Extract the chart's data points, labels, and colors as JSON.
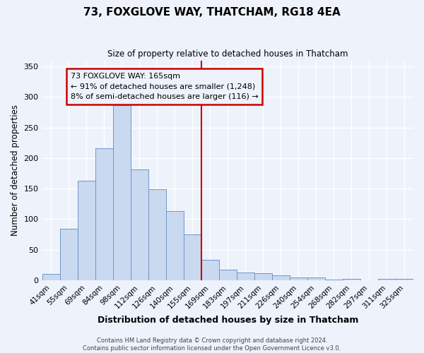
{
  "title": "73, FOXGLOVE WAY, THATCHAM, RG18 4EA",
  "subtitle": "Size of property relative to detached houses in Thatcham",
  "xlabel": "Distribution of detached houses by size in Thatcham",
  "ylabel": "Number of detached properties",
  "bar_labels": [
    "41sqm",
    "55sqm",
    "69sqm",
    "84sqm",
    "98sqm",
    "112sqm",
    "126sqm",
    "140sqm",
    "155sqm",
    "169sqm",
    "183sqm",
    "197sqm",
    "211sqm",
    "226sqm",
    "240sqm",
    "254sqm",
    "268sqm",
    "282sqm",
    "297sqm",
    "311sqm",
    "325sqm"
  ],
  "bar_heights": [
    10,
    84,
    163,
    216,
    287,
    181,
    149,
    113,
    75,
    34,
    17,
    13,
    11,
    8,
    4,
    4,
    1,
    2,
    0,
    2,
    2
  ],
  "bar_color": "#c9d9f0",
  "bar_edge_color": "#7096c8",
  "vline_x": 9.0,
  "vline_color": "#cc0000",
  "annotation_title": "73 FOXGLOVE WAY: 165sqm",
  "annotation_line1": "← 91% of detached houses are smaller (1,248)",
  "annotation_line2": "8% of semi-detached houses are larger (116) →",
  "annotation_box_color": "#cc0000",
  "ylim": [
    0,
    360
  ],
  "yticks": [
    0,
    50,
    100,
    150,
    200,
    250,
    300,
    350
  ],
  "footer1": "Contains HM Land Registry data © Crown copyright and database right 2024.",
  "footer2": "Contains public sector information licensed under the Open Government Licence v3.0.",
  "bg_color": "#eef2fb",
  "grid_color": "#ffffff"
}
